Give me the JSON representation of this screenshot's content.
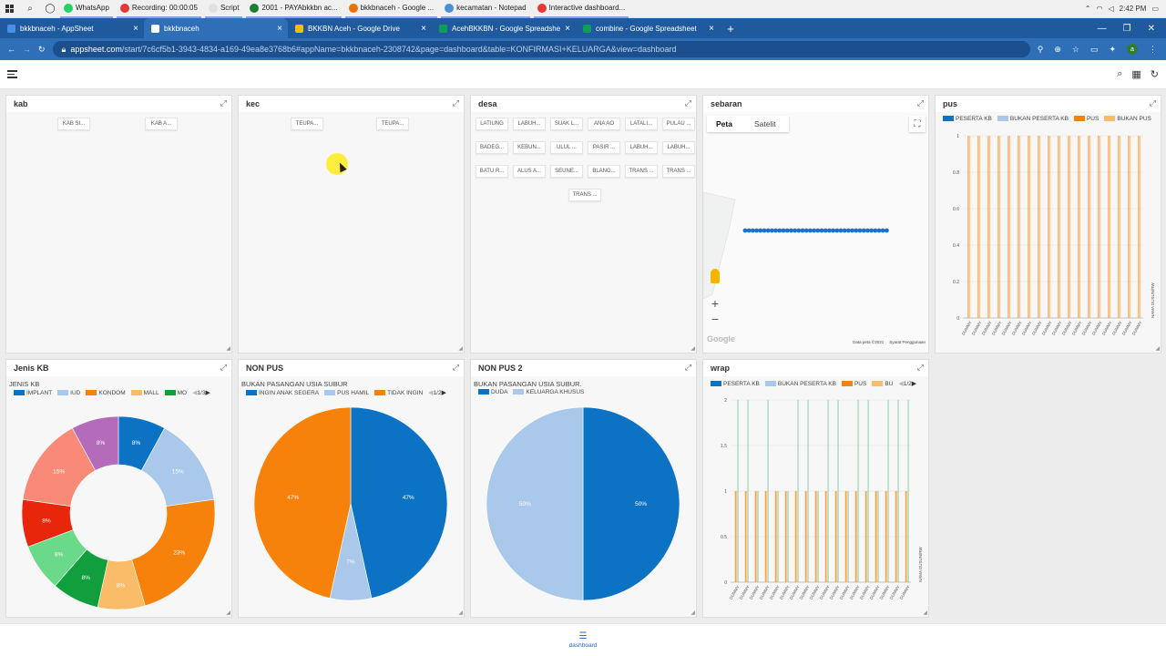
{
  "taskbar": {
    "apps": [
      {
        "label": "WhatsApp",
        "color": "#25d366"
      },
      {
        "label": "Recording:  00:00:05",
        "color": "#e53935"
      },
      {
        "label": "Script",
        "color": "#e0e0e0"
      },
      {
        "label": "2001 - PAYAbkkbn ac...",
        "color": "#1e7e34"
      },
      {
        "label": "bkkbnaceh - Google ...",
        "color": "#e8710a"
      },
      {
        "label": "kecamatan - Notepad",
        "color": "#4a90d9"
      },
      {
        "label": "Interactive dashboard...",
        "color": "#e53935"
      }
    ],
    "clock": "2:42 PM"
  },
  "browser": {
    "tabs": [
      {
        "label": "bkkbnaceh - AppSheet",
        "active": false,
        "color": "#4a8fe7"
      },
      {
        "label": "bkkbnaceh",
        "active": true,
        "color": "#ffffff"
      },
      {
        "label": "BKKBN Aceh - Google Drive",
        "active": false,
        "color": "#fbbc04"
      },
      {
        "label": "AcehBKKBN - Google Spreadshe",
        "active": false,
        "color": "#0f9d58"
      },
      {
        "label": "combine - Google Spreadsheet",
        "active": false,
        "color": "#0f9d58"
      }
    ],
    "new_tab": "+",
    "url_domain": "appsheet.com",
    "url_rest": "/start/7c6cf5b1-3943-4834-a169-49ea8e3768b6#appName=bkkbnaceh-2308742&page=dashboard&table=KONFIRMASI+KELUARGA&view=dashboard",
    "profile_initial": "a"
  },
  "panels": {
    "kab": {
      "title": "kab",
      "chips": [
        "KAB SI...",
        "KAB A..."
      ]
    },
    "kec": {
      "title": "kec",
      "chips": [
        "TEUPA...",
        "TEUPA..."
      ]
    },
    "desa": {
      "title": "desa",
      "chips": [
        "LATIUNG",
        "LABUH...",
        "SUAK L...",
        "ANA AO",
        "LATALI...",
        "PULAU ...",
        "BADEG...",
        "KEBUN...",
        "ULUL ...",
        "PASIR ...",
        "LABUH...",
        "LABUH...",
        "BATU R...",
        "ALUS A...",
        "SEUNE...",
        "BLANG...",
        "TRANS ...",
        "TRANS ...",
        "TRANS ..."
      ]
    },
    "sebaran": {
      "title": "sebaran",
      "map_tabs": [
        "Peta",
        "Satelit"
      ],
      "zoom_in": "+",
      "zoom_out": "−",
      "attribution": "Data peta ©2021",
      "terms": "Syarat Penggunaan",
      "google": "Google"
    },
    "pus": {
      "title": "pus",
      "legend": [
        "PESERTA KB",
        "BUKAN PESERTA KB",
        "PUS",
        "BUKAN PUS"
      ],
      "y_ticks": [
        "1",
        "0.8",
        "0.6",
        "0.4",
        "0.2",
        "0"
      ],
      "y_axis_label": "NAMA DUSUN/RW"
    },
    "jenis_kb": {
      "title": "Jenis KB",
      "subtitle": "JENIS KB",
      "legend": [
        "IMPLANT",
        "IUD",
        "KONDOM",
        "MALL",
        "MO"
      ],
      "pager": "1/3"
    },
    "non_pus": {
      "title": "NON PUS",
      "subtitle": "BUKAN PASANGAN USIA SUBUR",
      "legend": [
        "INGIN ANAK SEGERA",
        "PUS HAMIL",
        "TIDAK INGIN"
      ],
      "pager": "1/2"
    },
    "non_pus_2": {
      "title": "NON PUS 2",
      "subtitle": "BUKAN PASANGAN USIA SUBUR.",
      "legend": [
        "DUDA",
        "KELUARGA KHUSUS"
      ]
    },
    "wrap": {
      "title": "wrap",
      "legend": [
        "PESERTA KB",
        "BUKAN PESERTA KB",
        "PUS",
        "BU"
      ],
      "pager": "1/2",
      "y_ticks": [
        "2",
        "1.5",
        "1",
        "0.5",
        "0"
      ],
      "y_axis_label": "NAMA DUSUN/RW"
    }
  },
  "chart_data": [
    {
      "type": "pie",
      "title": "Jenis KB",
      "subtitle": "JENIS KB",
      "donut": true,
      "slices": [
        {
          "name": "IMPLANT",
          "value": 8,
          "label": "8%",
          "color": "#0b72c4"
        },
        {
          "name": "IUD",
          "value": 15,
          "label": "15%",
          "color": "#a9c8ea"
        },
        {
          "name": "KONDOM",
          "value": 23,
          "label": "23%",
          "color": "#f6820b"
        },
        {
          "name": "MALL",
          "value": 8,
          "label": "8%",
          "color": "#fbbc6a"
        },
        {
          "name": "MO",
          "value": 8,
          "label": "8%",
          "color": "#109f3c"
        },
        {
          "name": "",
          "value": 8,
          "label": "8%",
          "color": "#6ad98a"
        },
        {
          "name": "",
          "value": 8,
          "label": "8%",
          "color": "#e8260c"
        },
        {
          "name": "",
          "value": 15,
          "label": "15%",
          "color": "#fa8a78"
        },
        {
          "name": "",
          "value": 8,
          "label": "8%",
          "color": "#b46bba"
        }
      ]
    },
    {
      "type": "pie",
      "title": "NON PUS",
      "subtitle": "BUKAN PASANGAN USIA SUBUR",
      "donut": false,
      "slices": [
        {
          "name": "INGIN ANAK SEGERA",
          "value": 47,
          "label": "47%",
          "color": "#0b72c4"
        },
        {
          "name": "PUS HAMIL",
          "value": 7,
          "label": "7%",
          "color": "#a9c8ea"
        },
        {
          "name": "TIDAK INGIN",
          "value": 47,
          "label": "47%",
          "color": "#f6820b"
        }
      ]
    },
    {
      "type": "pie",
      "title": "NON PUS 2",
      "subtitle": "BUKAN PASANGAN USIA SUBUR.",
      "donut": false,
      "slices": [
        {
          "name": "DUDA",
          "value": 50,
          "label": "50%",
          "color": "#0b72c4"
        },
        {
          "name": "KELUARGA KHUSUS",
          "value": 50,
          "label": "50%",
          "color": "#a9c8ea"
        }
      ]
    },
    {
      "type": "bar",
      "title": "pus",
      "ylim": [
        0,
        1
      ],
      "series": [
        {
          "name": "PESERTA KB",
          "color": "#0b72c4"
        },
        {
          "name": "BUKAN PESERTA KB",
          "color": "#a9c8ea"
        },
        {
          "name": "PUS",
          "color": "#f6820b"
        },
        {
          "name": "BUKAN PUS",
          "color": "#fbbc6a"
        }
      ],
      "category_label": "DUMMY",
      "num_categories": 18,
      "values_per_category": [
        [
          0,
          0,
          1,
          1
        ],
        [
          0,
          0,
          1,
          1
        ],
        [
          0,
          0,
          1,
          1
        ],
        [
          0,
          0,
          1,
          1
        ],
        [
          0,
          0,
          1,
          1
        ],
        [
          0,
          0,
          1,
          1
        ],
        [
          0,
          0,
          1,
          1
        ],
        [
          0,
          0,
          1,
          1
        ],
        [
          0,
          0,
          1,
          1
        ],
        [
          0,
          0,
          1,
          1
        ],
        [
          0,
          0,
          1,
          1
        ],
        [
          0,
          0,
          1,
          1
        ],
        [
          0,
          0,
          1,
          1
        ],
        [
          0,
          0,
          1,
          1
        ],
        [
          0,
          0,
          1,
          1
        ],
        [
          0,
          0,
          1,
          1
        ],
        [
          0,
          0,
          1,
          1
        ],
        [
          0,
          0,
          1,
          1
        ]
      ]
    },
    {
      "type": "bar",
      "title": "wrap",
      "ylim": [
        0,
        2
      ],
      "series": [
        {
          "name": "PESERTA KB",
          "color": "#0b72c4"
        },
        {
          "name": "BUKAN PESERTA KB",
          "color": "#a9c8ea"
        },
        {
          "name": "PUS",
          "color": "#f6820b"
        },
        {
          "name": "BU",
          "color": "#fbbc6a"
        },
        {
          "name": "",
          "color": "#7fc8a0"
        }
      ],
      "category_label": "DUMMY",
      "num_categories": 18,
      "values_per_category": [
        [
          0,
          0,
          1,
          1,
          2
        ],
        [
          0,
          0,
          1,
          1,
          2
        ],
        [
          0,
          0,
          1,
          1,
          1
        ],
        [
          0,
          0,
          1,
          1,
          2
        ],
        [
          0,
          0,
          1,
          1,
          1
        ],
        [
          0,
          0,
          1,
          1,
          1
        ],
        [
          0,
          0,
          1,
          1,
          2
        ],
        [
          0,
          0,
          1,
          1,
          2
        ],
        [
          0,
          0,
          1,
          1,
          1
        ],
        [
          0,
          0,
          1,
          1,
          2
        ],
        [
          0,
          0,
          1,
          1,
          2
        ],
        [
          0,
          0,
          1,
          1,
          1
        ],
        [
          0,
          0,
          1,
          1,
          2
        ],
        [
          0,
          0,
          1,
          1,
          2
        ],
        [
          0,
          0,
          1,
          1,
          1
        ],
        [
          0,
          0,
          1,
          1,
          2
        ],
        [
          0,
          0,
          1,
          1,
          2
        ],
        [
          0,
          0,
          1,
          1,
          2
        ]
      ]
    }
  ],
  "bottom_nav": {
    "label": "dashboard"
  }
}
